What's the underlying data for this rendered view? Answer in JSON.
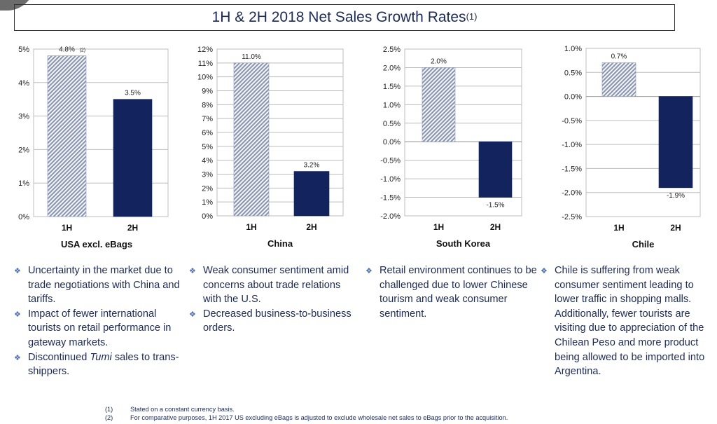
{
  "title": {
    "text": "1H & 2H 2018 Net Sales Growth Rates",
    "superscript": "(1)"
  },
  "colors": {
    "bar_1h": "#8a96b8",
    "bar_2h": "#13235e",
    "text": "#1b2a5e",
    "bullet": "#4d6fb0"
  },
  "chart_data": [
    {
      "type": "bar",
      "title": "USA excl. eBags",
      "categories": [
        "1H",
        "2H"
      ],
      "values": [
        4.8,
        3.5
      ],
      "data_labels": [
        "4.8%",
        "3.5%"
      ],
      "label_note": "(2)",
      "ylim": [
        0,
        5
      ],
      "yticks": [
        0,
        1,
        2,
        3,
        4,
        5
      ],
      "ytick_labels": [
        "0%",
        "1%",
        "2%",
        "3%",
        "4%",
        "5%"
      ],
      "grid": true
    },
    {
      "type": "bar",
      "title": "China",
      "categories": [
        "1H",
        "2H"
      ],
      "values": [
        11.0,
        3.2
      ],
      "data_labels": [
        "11.0%",
        "3.2%"
      ],
      "ylim": [
        0,
        12
      ],
      "yticks": [
        0,
        1,
        2,
        3,
        4,
        5,
        6,
        7,
        8,
        9,
        10,
        11,
        12
      ],
      "ytick_labels": [
        "0%",
        "1%",
        "2%",
        "3%",
        "4%",
        "5%",
        "6%",
        "7%",
        "8%",
        "9%",
        "10%",
        "11%",
        "12%"
      ],
      "grid": true
    },
    {
      "type": "bar",
      "title": "South Korea",
      "categories": [
        "1H",
        "2H"
      ],
      "values": [
        2.0,
        -1.5
      ],
      "data_labels": [
        "2.0%",
        "-1.5%"
      ],
      "ylim": [
        -2.0,
        2.5
      ],
      "yticks": [
        2.5,
        2.0,
        1.5,
        1.0,
        0.5,
        0,
        -0.5,
        -1.0,
        -1.5,
        -2.0
      ],
      "ytick_labels": [
        "2.5%",
        "2.0%",
        "1.5%",
        "1.0%",
        "0.5%",
        "0.0%",
        "-0.5%",
        "-1.0%",
        "-1.5%",
        "-2.0%"
      ],
      "grid": true
    },
    {
      "type": "bar",
      "title": "Chile",
      "categories": [
        "1H",
        "2H"
      ],
      "values": [
        0.7,
        -1.9
      ],
      "data_labels": [
        "0.7%",
        "-1.9%"
      ],
      "ylim": [
        -2.5,
        1.0
      ],
      "yticks": [
        1.0,
        0.5,
        0,
        -0.5,
        -1.0,
        -1.5,
        -2.0,
        -2.5
      ],
      "ytick_labels": [
        "1.0%",
        "0.5%",
        "0.0%",
        "-0.5%",
        "-1.0%",
        "-1.5%",
        "-2.0%",
        "-2.5%"
      ],
      "grid": true
    }
  ],
  "bullets": [
    {
      "items": [
        {
          "text": "Uncertainty in the market due to trade negotiations with China and tariffs."
        },
        {
          "text": "Impact of fewer international tourists on retail performance in gateway markets."
        },
        {
          "pre": "Discontinued ",
          "italic": "Tumi",
          "post": " sales to trans-shippers."
        }
      ]
    },
    {
      "items": [
        {
          "text": "Weak consumer sentiment amid concerns about trade relations with the U.S."
        },
        {
          "text": "Decreased business-to-business orders."
        }
      ]
    },
    {
      "items": [
        {
          "text": "Retail environment continues to be challenged due to lower Chinese tourism and weak consumer sentiment."
        }
      ]
    },
    {
      "items": [
        {
          "text": "Chile is suffering from weak consumer sentiment leading to lower traffic in shopping malls.  Additionally, fewer tourists are visiting due to appreciation of the Chilean Peso and more product being allowed to be imported into Argentina."
        }
      ]
    }
  ],
  "bullet_glyph": "diamond-bullet-icon",
  "footnotes": [
    {
      "num": "(1)",
      "text": "Stated on a constant currency basis."
    },
    {
      "num": "(2)",
      "text": "For comparative purposes, 1H 2017 US excluding eBags is adjusted to exclude wholesale net sales to eBags prior to the acquisition."
    }
  ]
}
